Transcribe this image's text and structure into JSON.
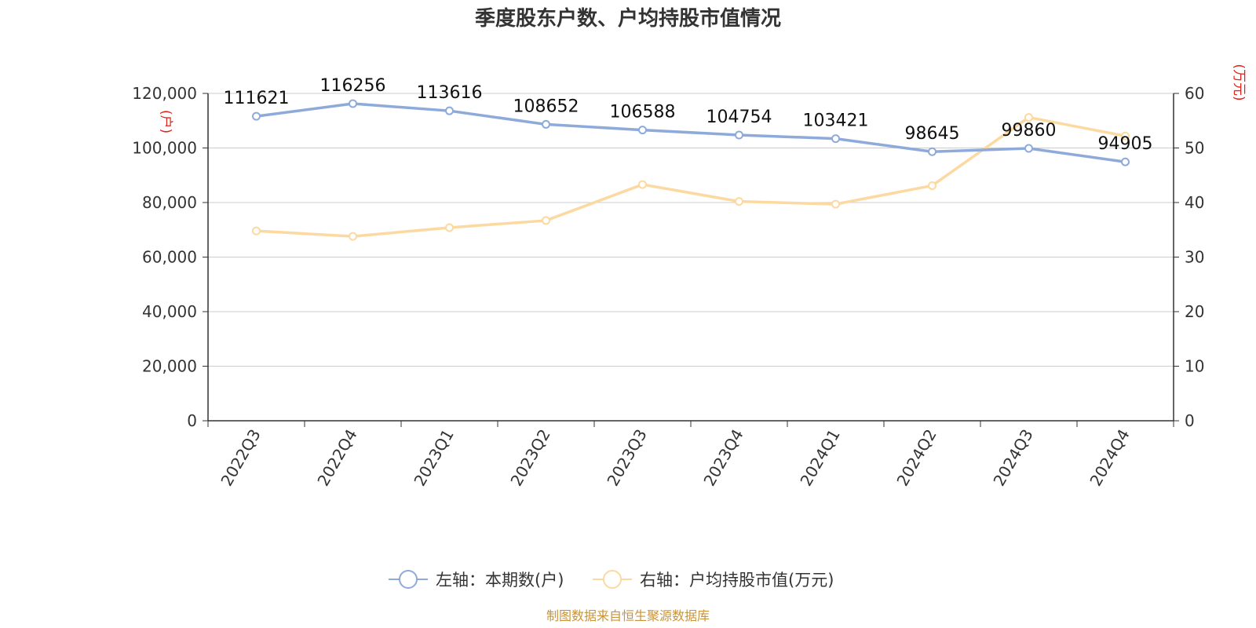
{
  "chart_data": {
    "type": "line",
    "title": "季度股东户数、户均持股市值情况",
    "categories": [
      "2022Q3",
      "2022Q4",
      "2023Q1",
      "2023Q2",
      "2023Q3",
      "2023Q4",
      "2024Q1",
      "2024Q2",
      "2024Q3",
      "2024Q4"
    ],
    "y_left": {
      "unit": "(户)",
      "ylim": [
        0,
        120000
      ],
      "ticks": [
        "0",
        "20,000",
        "40,000",
        "60,000",
        "80,000",
        "100,000",
        "120,000"
      ],
      "tick_values": [
        0,
        20000,
        40000,
        60000,
        80000,
        100000,
        120000
      ]
    },
    "y_right": {
      "unit": "(万元)",
      "ylim": [
        0,
        60
      ],
      "ticks": [
        "0",
        "10",
        "20",
        "30",
        "40",
        "50",
        "60"
      ],
      "tick_values": [
        0,
        10,
        20,
        30,
        40,
        50,
        60
      ]
    },
    "series": [
      {
        "name": "左轴：本期数(户)",
        "axis": "left",
        "color": "#8eaadb",
        "values": [
          111621,
          116256,
          113616,
          108652,
          106588,
          104754,
          103421,
          98645,
          99860,
          94905
        ],
        "labels": [
          "111621",
          "116256",
          "113616",
          "108652",
          "106588",
          "104754",
          "103421",
          "98645",
          "99860",
          "94905"
        ]
      },
      {
        "name": "右轴：户均持股市值(万元)",
        "axis": "right",
        "color": "#fcd9a0",
        "values": [
          34.8,
          33.8,
          35.4,
          36.7,
          43.3,
          40.2,
          39.7,
          43.1,
          55.6,
          52.2
        ]
      }
    ],
    "grid": true,
    "legend_position": "bottom-center"
  },
  "source": "制图数据来自恒生聚源数据库"
}
